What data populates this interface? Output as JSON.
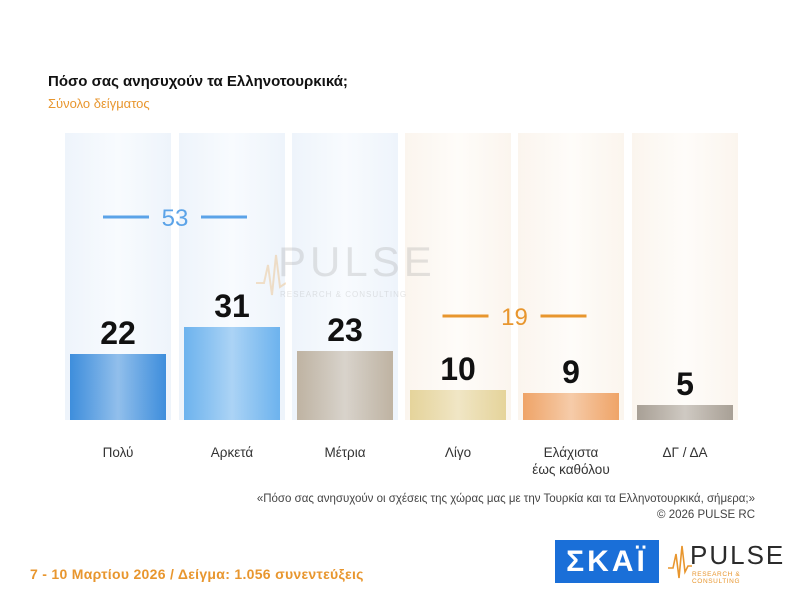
{
  "header": {
    "title": "Πόσο σας ανησυχούν τα Ελληνοτουρκικά;",
    "subtitle": "Σύνολο δείγματος"
  },
  "chart_data": {
    "type": "bar",
    "title": "Πόσο σας ανησυχούν τα Ελληνοτουρκικά;",
    "subtitle": "Σύνολο δείγματος",
    "categories": [
      "Πολύ",
      "Αρκετά",
      "Μέτρια",
      "Λίγο",
      "Ελάχιστα έως καθόλου",
      "ΔΓ / ΔΑ"
    ],
    "category_lines": [
      [
        "Πολύ"
      ],
      [
        "Αρκετά"
      ],
      [
        "Μέτρια"
      ],
      [
        "Λίγο"
      ],
      [
        "Ελάχιστα",
        "έως καθόλου"
      ],
      [
        "ΔΓ / ΔΑ"
      ]
    ],
    "values": [
      22,
      31,
      23,
      10,
      9,
      5
    ],
    "colors": [
      "#3E8EDC",
      "#6DB3EE",
      "#BFB3A2",
      "#E5D49B",
      "#EFA468",
      "#A8A096"
    ],
    "group_totals": [
      {
        "value": 53,
        "label": "53",
        "categories": [
          "Πολύ",
          "Αρκετά"
        ],
        "color": "#5BA3E8"
      },
      {
        "value": 19,
        "label": "19",
        "categories": [
          "Λίγο",
          "Ελάχιστα έως καθόλου"
        ],
        "color": "#E8962E"
      }
    ],
    "ylim": [
      0,
      100
    ],
    "grid": false,
    "legend": "none",
    "xlabel": "",
    "ylabel": ""
  },
  "notes": {
    "question": "«Πόσο σας ανησυχούν οι σχέσεις της χώρας μας με την Τουρκία και τα Ελληνοτουρκικά, σήμερα;»",
    "copyright": "©  2026  PULSE RC"
  },
  "footer": {
    "text": "7 - 10  Μαρτίου 2026  /  Δείγμα:  1.056 συνεντεύξεις"
  },
  "logos": {
    "skai": "ΣΚΑΪ",
    "pulse_name": "PULSE",
    "pulse_tagline": "RESEARCH & CONSULTING"
  },
  "watermark": {
    "name": "PULSE",
    "tagline": "RESEARCH & CONSULTING"
  }
}
